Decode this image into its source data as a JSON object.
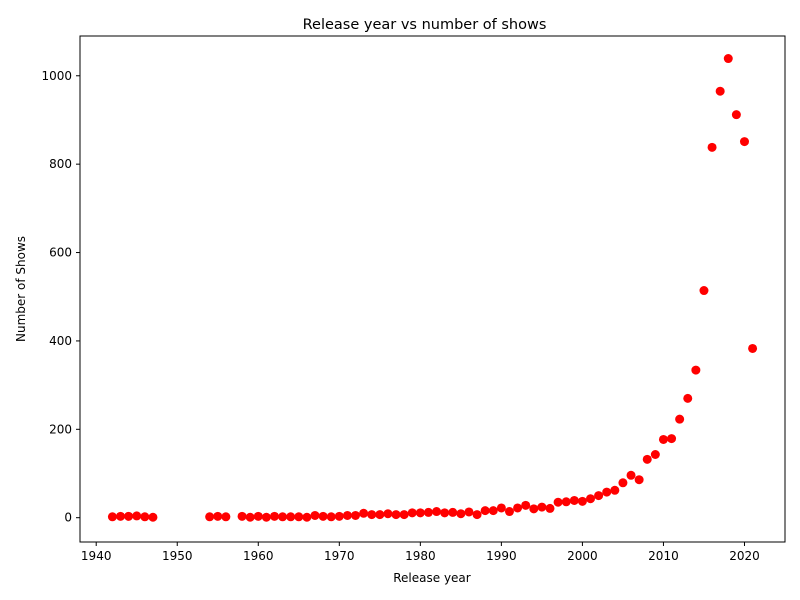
{
  "chart_data": {
    "type": "scatter",
    "title": "Release year vs number of shows",
    "xlabel": "Release year",
    "ylabel": "Number of Shows",
    "xlim": [
      1938,
      2025
    ],
    "ylim": [
      -55,
      1090
    ],
    "xticks": [
      1940,
      1950,
      1960,
      1970,
      1980,
      1990,
      2000,
      2010,
      2020
    ],
    "yticks": [
      0,
      200,
      400,
      600,
      800,
      1000
    ],
    "grid": false,
    "marker_color": "#ff0000",
    "points": [
      {
        "x": 1942,
        "y": 2
      },
      {
        "x": 1943,
        "y": 3
      },
      {
        "x": 1944,
        "y": 3
      },
      {
        "x": 1945,
        "y": 4
      },
      {
        "x": 1946,
        "y": 2
      },
      {
        "x": 1947,
        "y": 1
      },
      {
        "x": 1954,
        "y": 2
      },
      {
        "x": 1955,
        "y": 3
      },
      {
        "x": 1956,
        "y": 2
      },
      {
        "x": 1958,
        "y": 3
      },
      {
        "x": 1959,
        "y": 1
      },
      {
        "x": 1960,
        "y": 3
      },
      {
        "x": 1961,
        "y": 1
      },
      {
        "x": 1962,
        "y": 3
      },
      {
        "x": 1963,
        "y": 2
      },
      {
        "x": 1964,
        "y": 2
      },
      {
        "x": 1965,
        "y": 2
      },
      {
        "x": 1966,
        "y": 1
      },
      {
        "x": 1967,
        "y": 5
      },
      {
        "x": 1968,
        "y": 3
      },
      {
        "x": 1969,
        "y": 2
      },
      {
        "x": 1970,
        "y": 3
      },
      {
        "x": 1971,
        "y": 5
      },
      {
        "x": 1972,
        "y": 5
      },
      {
        "x": 1973,
        "y": 10
      },
      {
        "x": 1974,
        "y": 7
      },
      {
        "x": 1975,
        "y": 7
      },
      {
        "x": 1976,
        "y": 9
      },
      {
        "x": 1977,
        "y": 7
      },
      {
        "x": 1978,
        "y": 7
      },
      {
        "x": 1979,
        "y": 11
      },
      {
        "x": 1980,
        "y": 11
      },
      {
        "x": 1981,
        "y": 12
      },
      {
        "x": 1982,
        "y": 14
      },
      {
        "x": 1983,
        "y": 11
      },
      {
        "x": 1984,
        "y": 12
      },
      {
        "x": 1985,
        "y": 9
      },
      {
        "x": 1986,
        "y": 13
      },
      {
        "x": 1987,
        "y": 7
      },
      {
        "x": 1988,
        "y": 16
      },
      {
        "x": 1989,
        "y": 16
      },
      {
        "x": 1990,
        "y": 22
      },
      {
        "x": 1991,
        "y": 14
      },
      {
        "x": 1992,
        "y": 22
      },
      {
        "x": 1993,
        "y": 28
      },
      {
        "x": 1994,
        "y": 20
      },
      {
        "x": 1995,
        "y": 24
      },
      {
        "x": 1996,
        "y": 21
      },
      {
        "x": 1997,
        "y": 35
      },
      {
        "x": 1998,
        "y": 36
      },
      {
        "x": 1999,
        "y": 39
      },
      {
        "x": 2000,
        "y": 37
      },
      {
        "x": 2001,
        "y": 43
      },
      {
        "x": 2002,
        "y": 50
      },
      {
        "x": 2003,
        "y": 58
      },
      {
        "x": 2004,
        "y": 62
      },
      {
        "x": 2005,
        "y": 79
      },
      {
        "x": 2006,
        "y": 96
      },
      {
        "x": 2007,
        "y": 86
      },
      {
        "x": 2008,
        "y": 132
      },
      {
        "x": 2009,
        "y": 143
      },
      {
        "x": 2010,
        "y": 177
      },
      {
        "x": 2011,
        "y": 179
      },
      {
        "x": 2012,
        "y": 223
      },
      {
        "x": 2013,
        "y": 270
      },
      {
        "x": 2014,
        "y": 334
      },
      {
        "x": 2015,
        "y": 514
      },
      {
        "x": 2016,
        "y": 838
      },
      {
        "x": 2017,
        "y": 965
      },
      {
        "x": 2018,
        "y": 1039
      },
      {
        "x": 2019,
        "y": 912
      },
      {
        "x": 2020,
        "y": 851
      },
      {
        "x": 2021,
        "y": 383
      }
    ]
  }
}
